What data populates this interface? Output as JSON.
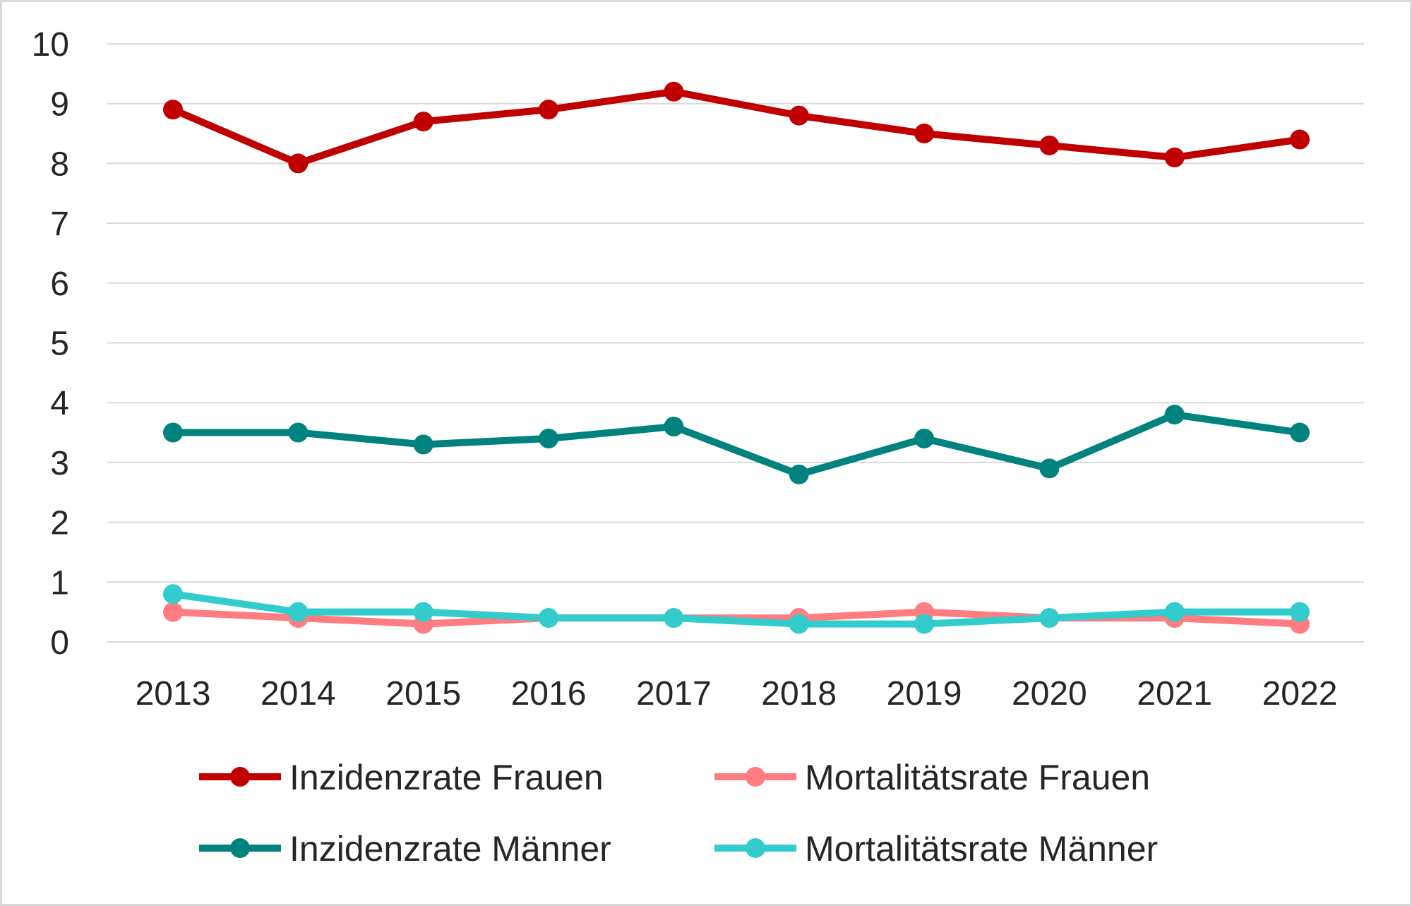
{
  "chart_data": {
    "type": "line",
    "title": "",
    "xlabel": "",
    "ylabel": "",
    "x": [
      "2013",
      "2014",
      "2015",
      "2016",
      "2017",
      "2018",
      "2019",
      "2020",
      "2021",
      "2022"
    ],
    "ylim": [
      0,
      10
    ],
    "yticks": [
      "0",
      "1",
      "2",
      "3",
      "4",
      "5",
      "6",
      "7",
      "8",
      "9",
      "10"
    ],
    "grid": true,
    "legend_position": "bottom",
    "series": [
      {
        "name": "Inzidenzrate Frauen",
        "color": "#c00000",
        "values": [
          8.9,
          8.0,
          8.7,
          8.9,
          9.2,
          8.8,
          8.5,
          8.3,
          8.1,
          8.4
        ]
      },
      {
        "name": "Mortalitätsrate Frauen",
        "color": "#ff7c80",
        "values": [
          0.5,
          0.4,
          0.3,
          0.4,
          0.4,
          0.4,
          0.5,
          0.4,
          0.4,
          0.3
        ]
      },
      {
        "name": "Inzidenzrate Männer",
        "color": "#00837f",
        "values": [
          3.5,
          3.5,
          3.3,
          3.4,
          3.6,
          2.8,
          3.4,
          2.9,
          3.8,
          3.5
        ]
      },
      {
        "name": "Mortalitätsrate Männer",
        "color": "#33cccc",
        "values": [
          0.8,
          0.5,
          0.5,
          0.4,
          0.4,
          0.3,
          0.3,
          0.4,
          0.5,
          0.5
        ]
      }
    ]
  }
}
